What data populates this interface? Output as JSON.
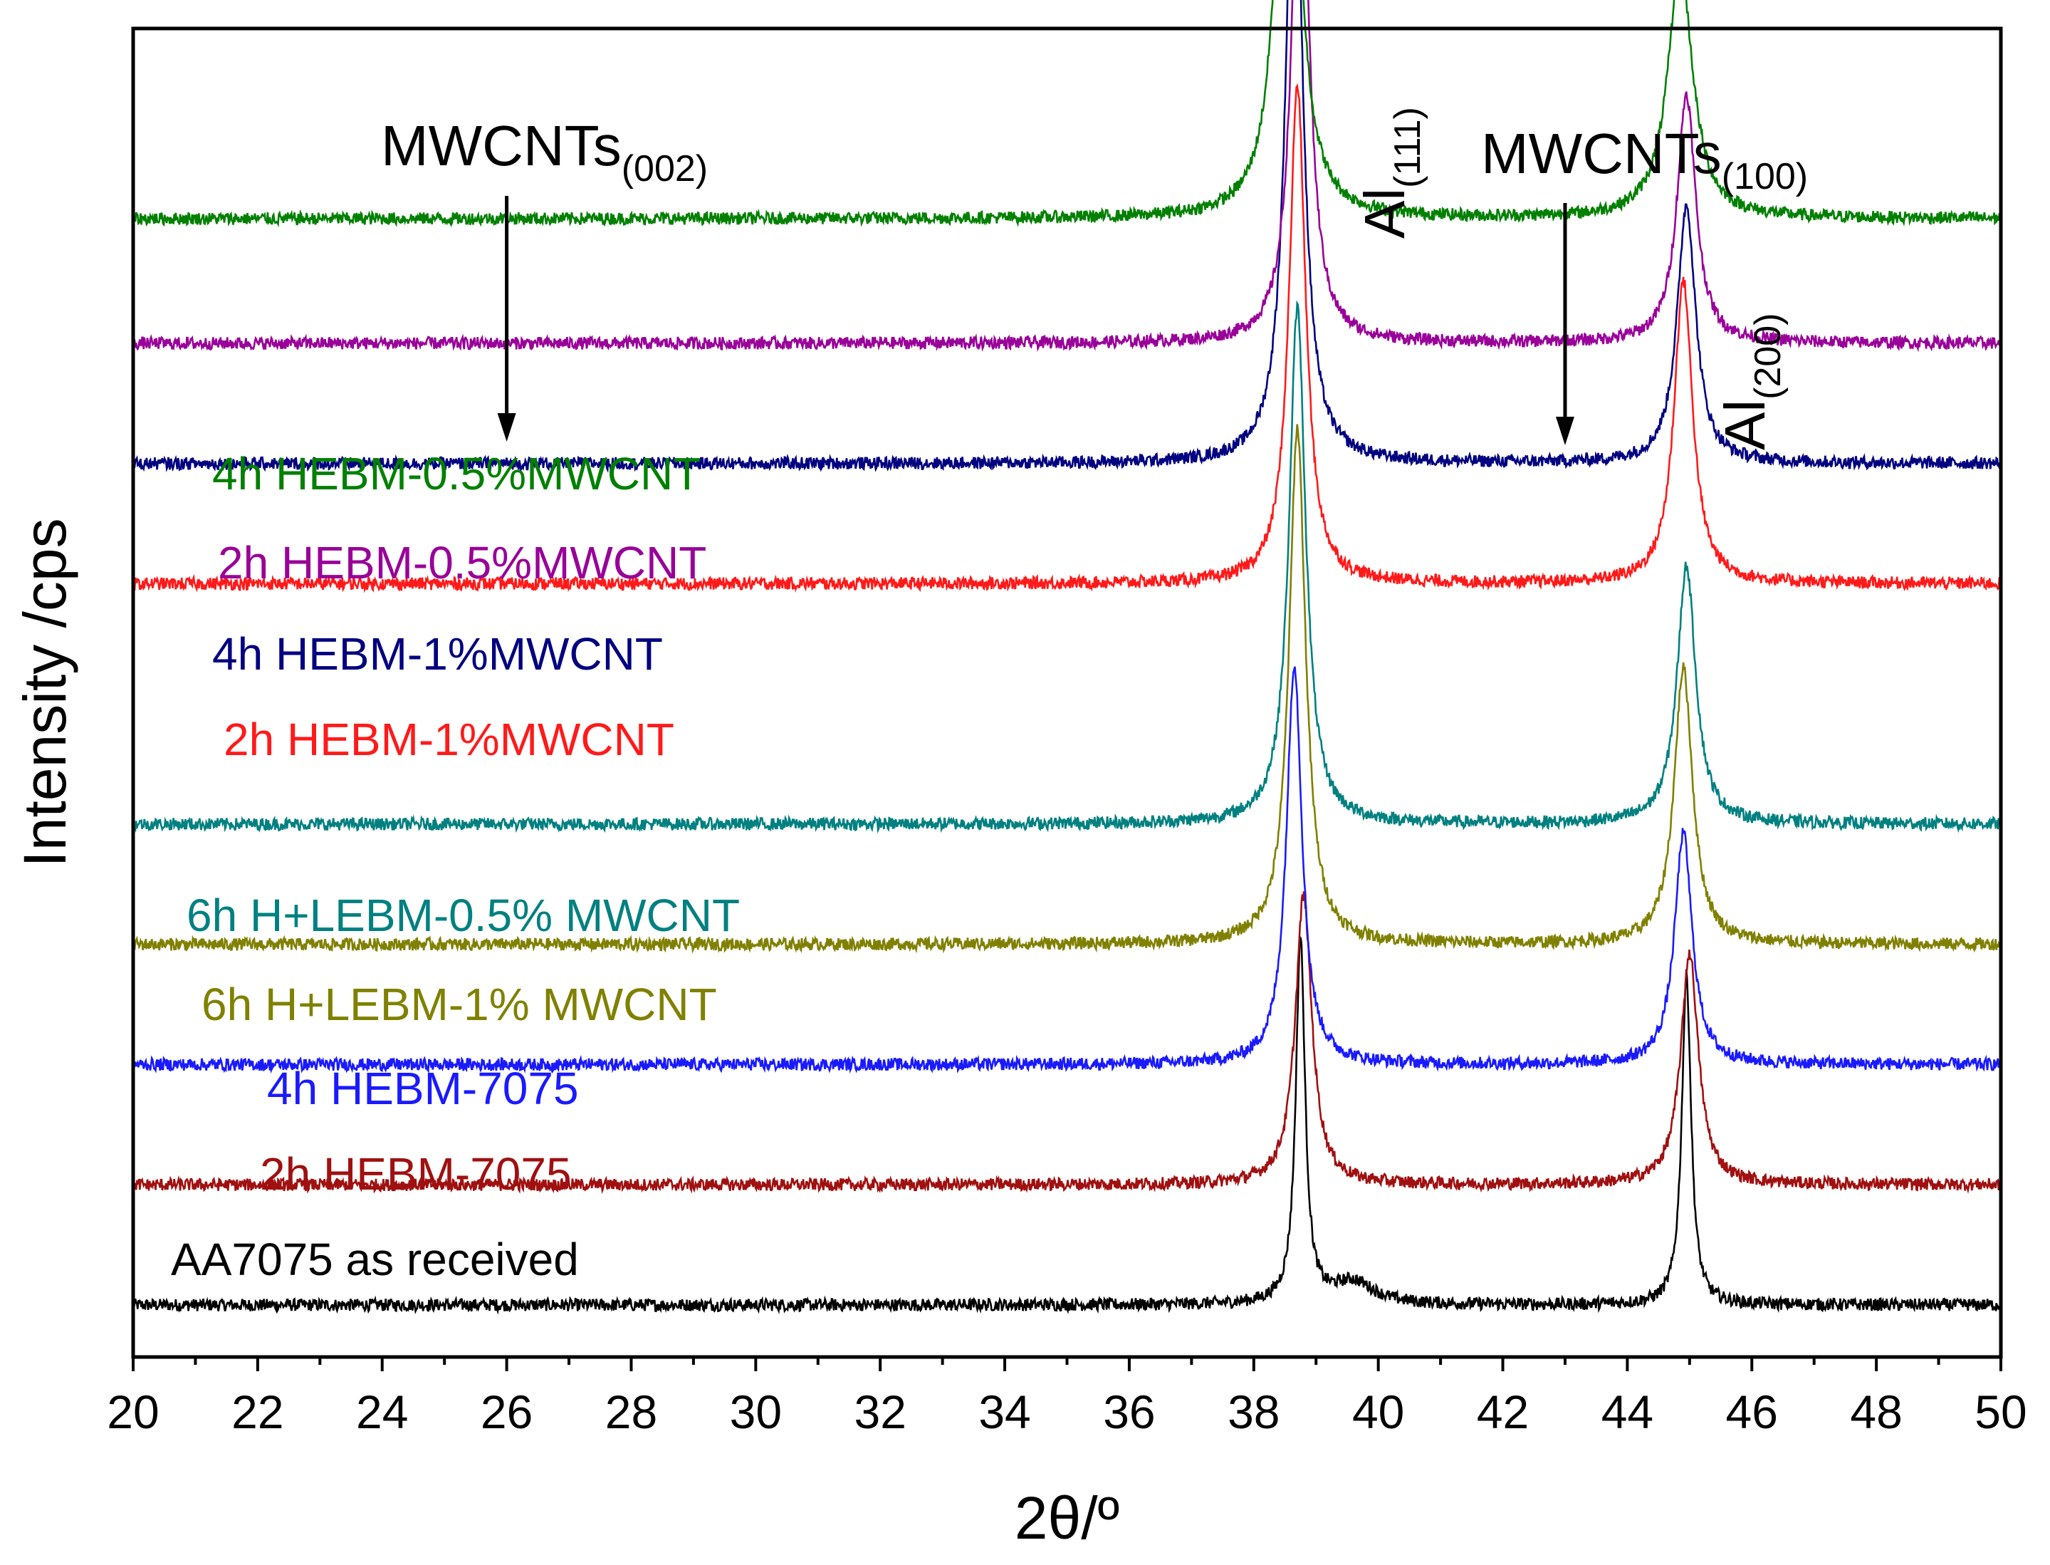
{
  "chart_data": {
    "type": "line",
    "xlabel": "2θ/º",
    "ylabel": "Intensity /cps",
    "xlim": [
      20,
      50
    ],
    "xticks_major": [
      20,
      22,
      24,
      26,
      28,
      30,
      32,
      34,
      36,
      38,
      40,
      42,
      44,
      46,
      48,
      50
    ],
    "xticks_minor_step": 1,
    "y_tick_labels": false,
    "grid": false,
    "legend": "inline labels above each trace",
    "series": [
      {
        "name": "AA7075 as received",
        "color": "#000000",
        "baseline": 0,
        "peaks": [
          {
            "x": 38.75,
            "h": 4.1,
            "w": 0.09
          },
          {
            "x": 44.95,
            "h": 3.7,
            "w": 0.09
          },
          {
            "x": 39.6,
            "h": 0.25,
            "w": 0.4
          }
        ]
      },
      {
        "name": "2h HEBM-7075",
        "color": "#a01010",
        "baseline": 1.35,
        "peaks": [
          {
            "x": 38.8,
            "h": 3.25,
            "w": 0.16
          },
          {
            "x": 45.0,
            "h": 2.6,
            "w": 0.17
          }
        ]
      },
      {
        "name": "4h HEBM-7075",
        "color": "#1a1aff",
        "baseline": 2.7,
        "peaks": [
          {
            "x": 38.65,
            "h": 4.5,
            "w": 0.15
          },
          {
            "x": 44.9,
            "h": 2.6,
            "w": 0.17
          }
        ]
      },
      {
        "name": "6h H+LEBM-1% MWCNT",
        "color": "#808000",
        "baseline": 4.05,
        "peaks": [
          {
            "x": 38.7,
            "h": 5.8,
            "w": 0.16
          },
          {
            "x": 44.9,
            "h": 3.1,
            "w": 0.18
          }
        ]
      },
      {
        "name": "6h H+LEBM-0.5% MWCNT",
        "color": "#008080",
        "baseline": 5.4,
        "peaks": [
          {
            "x": 38.7,
            "h": 5.8,
            "w": 0.16
          },
          {
            "x": 44.95,
            "h": 2.9,
            "w": 0.18
          }
        ]
      },
      {
        "name": "2h HEBM-1%MWCNT",
        "color": "#ff1a1a",
        "baseline": 8.1,
        "peaks": [
          {
            "x": 38.7,
            "h": 5.6,
            "w": 0.16
          },
          {
            "x": 44.9,
            "h": 3.4,
            "w": 0.18
          }
        ]
      },
      {
        "name": "4h HEBM-1%MWCNT",
        "color": "#000080",
        "baseline": 9.45,
        "peaks": [
          {
            "x": 38.65,
            "h": 7.6,
            "w": 0.16
          },
          {
            "x": 44.95,
            "h": 2.9,
            "w": 0.18
          }
        ]
      },
      {
        "name": "2h HEBM-0.5%MWCNT",
        "color": "#990099",
        "baseline": 10.8,
        "peaks": [
          {
            "x": 38.75,
            "h": 6.3,
            "w": 0.16
          },
          {
            "x": 44.95,
            "h": 2.8,
            "w": 0.18
          }
        ]
      },
      {
        "name": "4h HEBM-0.5%MWCNT",
        "color": "#008000",
        "baseline": 12.2,
        "peaks": [
          {
            "x": 38.55,
            "h": 6.3,
            "w": 0.2
          },
          {
            "x": 44.85,
            "h": 2.85,
            "w": 0.24
          }
        ]
      }
    ],
    "annotations": [
      {
        "text": "MWCNTs",
        "sub": "(002)",
        "arrow_x": 26
      },
      {
        "text": "MWCNTs",
        "sub": "(100)",
        "arrow_x": 43
      },
      {
        "text": "Al",
        "sub": "(111)",
        "rotated": true
      },
      {
        "text": "Al",
        "sub": "(200)",
        "rotated": true
      }
    ]
  }
}
